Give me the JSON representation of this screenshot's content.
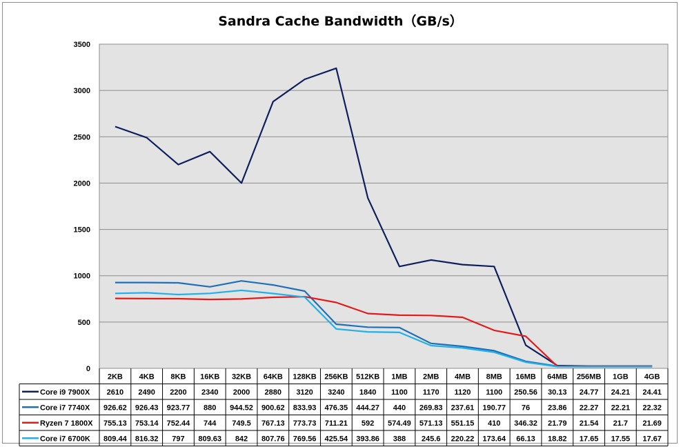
{
  "chart_data": {
    "type": "line",
    "title": "Sandra Cache Bandwidth（GB/s）",
    "xlabel": "",
    "ylabel": "",
    "ylim": [
      0,
      3500
    ],
    "yticks": [
      0,
      500,
      1000,
      1500,
      2000,
      2500,
      3000,
      3500
    ],
    "grid": true,
    "legend": "data table below chart",
    "categories": [
      "2KB",
      "4KB",
      "8KB",
      "16KB",
      "32KB",
      "64KB",
      "128KB",
      "256KB",
      "512KB",
      "1MB",
      "2MB",
      "4MB",
      "8MB",
      "16MB",
      "64MB",
      "256MB",
      "1GB",
      "4GB"
    ],
    "series": [
      {
        "name": "Core i9 7900X",
        "color": "#0d1f5c",
        "values": [
          2610,
          2490,
          2200,
          2340,
          2000,
          2880,
          3120,
          3240,
          1840,
          1100,
          1170,
          1120,
          1100,
          250.56,
          30.13,
          24.77,
          24.21,
          24.41
        ]
      },
      {
        "name": "Core i7 7740X",
        "color": "#1f6fb8",
        "values": [
          926.62,
          926.43,
          923.77,
          880,
          944.52,
          900.62,
          833.93,
          476.35,
          444.27,
          440,
          269.83,
          237.61,
          190.77,
          76,
          23.86,
          22.27,
          22.21,
          22.32
        ]
      },
      {
        "name": "Ryzen 7 1800X",
        "color": "#e31a1c",
        "values": [
          755.13,
          753.14,
          752.44,
          744,
          749.5,
          767.13,
          773.73,
          711.21,
          592,
          574.49,
          571.13,
          551.15,
          410,
          346.32,
          21.79,
          21.54,
          21.7,
          21.69
        ]
      },
      {
        "name": "Core i7 6700K",
        "color": "#22b0e8",
        "values": [
          809.44,
          816.32,
          797,
          809.63,
          842,
          807.76,
          769.56,
          425.54,
          393.86,
          388,
          245.6,
          220.22,
          173.64,
          66.13,
          18.82,
          17.65,
          17.55,
          17.67
        ]
      }
    ]
  }
}
